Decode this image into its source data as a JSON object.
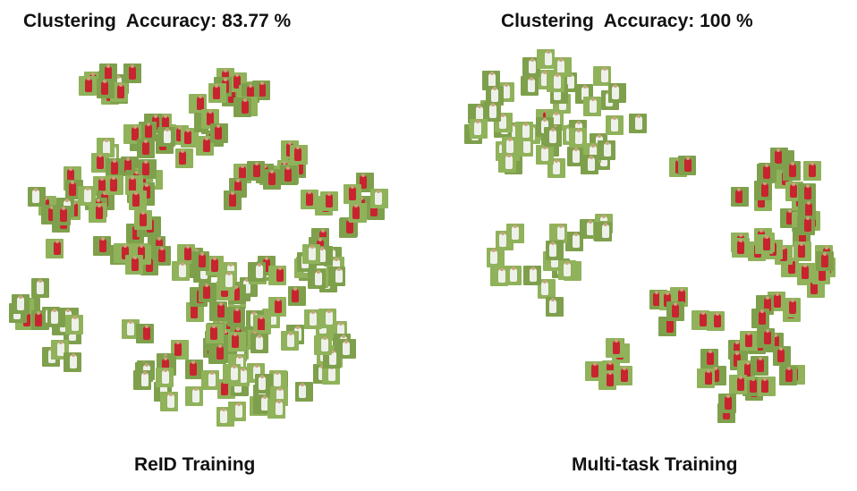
{
  "panels": [
    {
      "accuracy_title": "Clustering  Accuracy: 83.77 %",
      "caption": "ReID Training"
    },
    {
      "accuracy_title": "Clustering  Accuracy: 100 %",
      "caption": "Multi-task Training"
    }
  ],
  "colors": {
    "grass": "#8fb25a",
    "grass_dark": "#7ea04c",
    "team_red": "#c8242f",
    "team_white": "#eef0ea"
  }
}
